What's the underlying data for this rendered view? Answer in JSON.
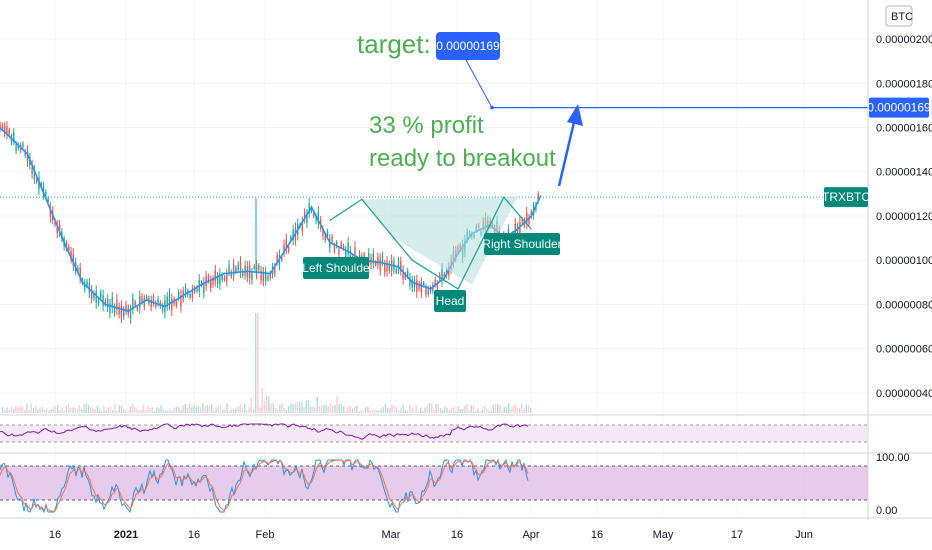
{
  "chart_data": {
    "type": "line",
    "symbol": "TRXBTC",
    "currency": "BTC",
    "x_ticks": [
      "16",
      "2021",
      "16",
      "Feb",
      "Mar",
      "16",
      "Apr",
      "16",
      "May",
      "17",
      "Jun"
    ],
    "y_ticks": [
      "0.00000200",
      "0.00000180",
      "0.00000160",
      "0.00000140",
      "0.00000120",
      "0.00000100",
      "0.00000080",
      "0.00000060",
      "0.00000040"
    ],
    "ylim": [
      3e-07,
      2.05e-06
    ],
    "grid": true,
    "last_price_label": "0.00000169",
    "symbol_label": "TRXBTC",
    "price_series": {
      "x": [
        "2020-12-01",
        "2020-12-05",
        "2020-12-10",
        "2020-12-14",
        "2020-12-18",
        "2020-12-22",
        "2020-12-27",
        "2021-01-01",
        "2021-01-05",
        "2021-01-09",
        "2021-01-13",
        "2021-01-17",
        "2021-01-22",
        "2021-01-27",
        "2021-02-01",
        "2021-02-05",
        "2021-02-10",
        "2021-02-14",
        "2021-02-18",
        "2021-02-21",
        "2021-02-25",
        "2021-03-01",
        "2021-03-04",
        "2021-03-08",
        "2021-03-11",
        "2021-03-14",
        "2021-03-17",
        "2021-03-21",
        "2021-03-24",
        "2021-03-27",
        "2021-03-30",
        "2021-04-01"
      ],
      "y": [
        1.65e-06,
        1.58e-06,
        1.48e-06,
        1.28e-06,
        1.08e-06,
        9e-07,
        8e-07,
        7.7e-07,
        8.2e-07,
        7.9e-07,
        8.4e-07,
        8.9e-07,
        9.4e-07,
        9.5e-07,
        9.4e-07,
        1.07e-06,
        1.24e-06,
        1.08e-06,
        1.04e-06,
        1e-06,
        9.9e-07,
        9.7e-07,
        9e-07,
        8.7e-07,
        9.2e-07,
        1.03e-06,
        1.12e-06,
        1.16e-06,
        1.1e-06,
        1.14e-06,
        1.2e-06,
        1.29e-06
      ]
    },
    "annotations": {
      "target_text": "target:",
      "target_value": "0.00000169",
      "profit_line1": "33 % profit",
      "profit_line2": "ready to breakout",
      "left_shoulder": "Left Shoulde",
      "head": "Head",
      "right_shoulder": "Right Shoulder"
    },
    "indicators": {
      "rsi_panel": {
        "type": "line",
        "band": [
          30,
          70
        ]
      },
      "stoch_panel": {
        "type": "line",
        "y_ticks": [
          "100.00",
          "0.00"
        ],
        "band": [
          20,
          80
        ]
      }
    },
    "colors": {
      "price_up": "#26a69a",
      "price_down": "#ef5350",
      "ma": "#2196f3",
      "pattern_fill": "#b2dfdb",
      "accent_blue": "#2962ff",
      "text_green": "#4caf50",
      "label_teal": "#00897b",
      "rsi_line": "#7b1fa2",
      "rsi_band": "#f3e5f5",
      "stoch_band": "#e1bee7"
    }
  }
}
